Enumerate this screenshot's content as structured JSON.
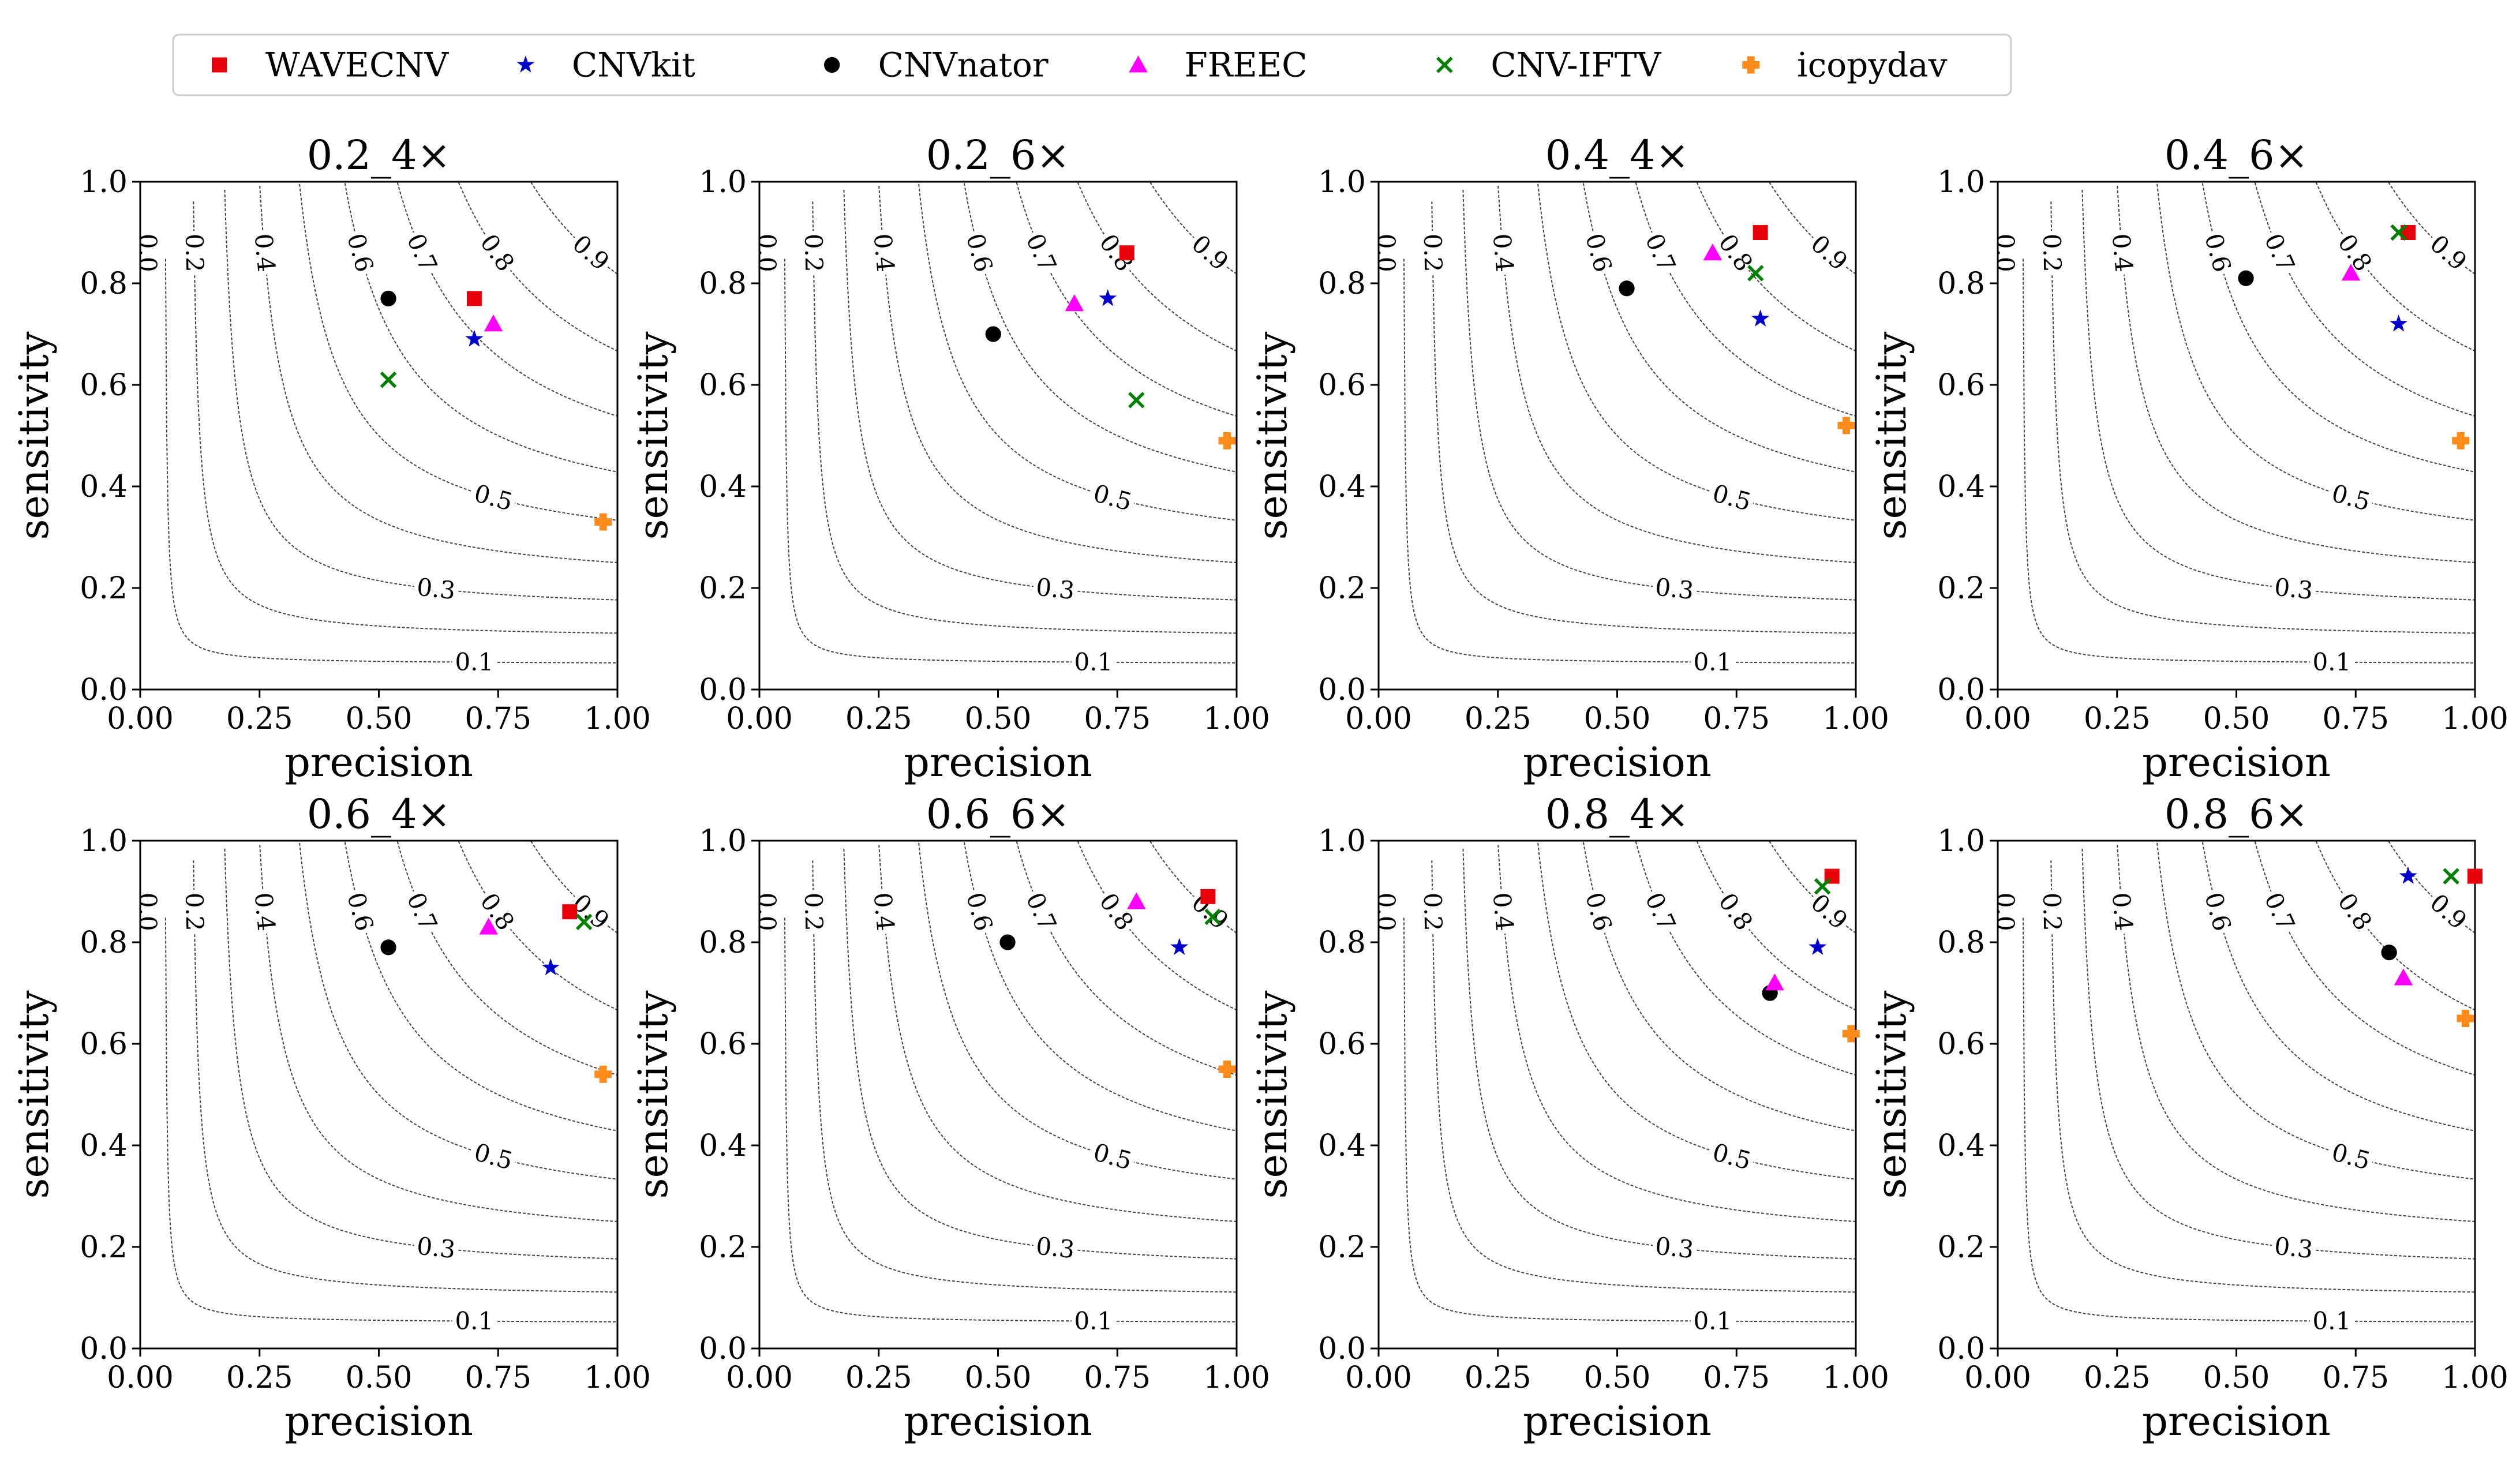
{
  "figure": {
    "legend_position": "top",
    "x_label": "precision",
    "y_label": "sensitivity",
    "x_ticks": [
      "0.00",
      "0.25",
      "0.50",
      "0.75",
      "1.00"
    ],
    "y_ticks": [
      "0.0",
      "0.2",
      "0.4",
      "0.6",
      "0.8",
      "1.0"
    ]
  },
  "series_styles": [
    {
      "name": "WAVECNV",
      "color": "#e8000b",
      "marker": "square"
    },
    {
      "name": "CNVkit",
      "color": "#0000cc",
      "marker": "star"
    },
    {
      "name": "CNVnator",
      "color": "#000000",
      "marker": "circle"
    },
    {
      "name": "FREEC",
      "color": "#ff00ff",
      "marker": "triangle"
    },
    {
      "name": "CNV-IFTV",
      "color": "#008000",
      "marker": "x"
    },
    {
      "name": "icopydav",
      "color": "#ff8c1a",
      "marker": "plus-filled"
    }
  ],
  "chart_data": [
    {
      "type": "scatter",
      "title": "0.2_4×",
      "xlabel": "precision",
      "ylabel": "sensitivity",
      "xlim": [
        0,
        1
      ],
      "ylim": [
        0,
        1
      ],
      "contour_levels": [
        0.0,
        0.1,
        0.2,
        0.3,
        0.4,
        0.5,
        0.6,
        0.7,
        0.8,
        0.9
      ],
      "series": [
        {
          "name": "WAVECNV",
          "points": [
            [
              0.7,
              0.77
            ]
          ]
        },
        {
          "name": "CNVkit",
          "points": [
            [
              0.7,
              0.69
            ]
          ]
        },
        {
          "name": "CNVnator",
          "points": [
            [
              0.52,
              0.77
            ]
          ]
        },
        {
          "name": "FREEC",
          "points": [
            [
              0.74,
              0.72
            ]
          ]
        },
        {
          "name": "CNV-IFTV",
          "points": [
            [
              0.52,
              0.61
            ]
          ]
        },
        {
          "name": "icopydav",
          "points": [
            [
              0.97,
              0.33
            ]
          ]
        }
      ]
    },
    {
      "type": "scatter",
      "title": "0.2_6×",
      "xlabel": "precision",
      "ylabel": "sensitivity",
      "xlim": [
        0,
        1
      ],
      "ylim": [
        0,
        1
      ],
      "contour_levels": [
        0.0,
        0.1,
        0.2,
        0.3,
        0.4,
        0.5,
        0.6,
        0.7,
        0.8,
        0.9
      ],
      "series": [
        {
          "name": "WAVECNV",
          "points": [
            [
              0.77,
              0.86
            ]
          ]
        },
        {
          "name": "CNVkit",
          "points": [
            [
              0.73,
              0.77
            ]
          ]
        },
        {
          "name": "CNVnator",
          "points": [
            [
              0.49,
              0.7
            ]
          ]
        },
        {
          "name": "FREEC",
          "points": [
            [
              0.66,
              0.76
            ]
          ]
        },
        {
          "name": "CNV-IFTV",
          "points": [
            [
              0.79,
              0.57
            ]
          ]
        },
        {
          "name": "icopydav",
          "points": [
            [
              0.98,
              0.49
            ]
          ]
        }
      ]
    },
    {
      "type": "scatter",
      "title": "0.4_4×",
      "xlabel": "precision",
      "ylabel": "sensitivity",
      "xlim": [
        0,
        1
      ],
      "ylim": [
        0,
        1
      ],
      "contour_levels": [
        0.0,
        0.1,
        0.2,
        0.3,
        0.4,
        0.5,
        0.6,
        0.7,
        0.8,
        0.9
      ],
      "series": [
        {
          "name": "WAVECNV",
          "points": [
            [
              0.8,
              0.9
            ]
          ]
        },
        {
          "name": "CNVkit",
          "points": [
            [
              0.8,
              0.73
            ]
          ]
        },
        {
          "name": "CNVnator",
          "points": [
            [
              0.52,
              0.79
            ]
          ]
        },
        {
          "name": "FREEC",
          "points": [
            [
              0.7,
              0.86
            ]
          ]
        },
        {
          "name": "CNV-IFTV",
          "points": [
            [
              0.79,
              0.82
            ]
          ]
        },
        {
          "name": "icopydav",
          "points": [
            [
              0.98,
              0.52
            ]
          ]
        }
      ]
    },
    {
      "type": "scatter",
      "title": "0.4_6×",
      "xlabel": "precision",
      "ylabel": "sensitivity",
      "xlim": [
        0,
        1
      ],
      "ylim": [
        0,
        1
      ],
      "contour_levels": [
        0.0,
        0.1,
        0.2,
        0.3,
        0.4,
        0.5,
        0.6,
        0.7,
        0.8,
        0.9
      ],
      "series": [
        {
          "name": "WAVECNV",
          "points": [
            [
              0.86,
              0.9
            ]
          ]
        },
        {
          "name": "CNVkit",
          "points": [
            [
              0.84,
              0.72
            ]
          ]
        },
        {
          "name": "CNVnator",
          "points": [
            [
              0.52,
              0.81
            ]
          ]
        },
        {
          "name": "FREEC",
          "points": [
            [
              0.74,
              0.82
            ]
          ]
        },
        {
          "name": "CNV-IFTV",
          "points": [
            [
              0.84,
              0.9
            ]
          ]
        },
        {
          "name": "icopydav",
          "points": [
            [
              0.97,
              0.49
            ]
          ]
        }
      ]
    },
    {
      "type": "scatter",
      "title": "0.6_4×",
      "xlabel": "precision",
      "ylabel": "sensitivity",
      "xlim": [
        0,
        1
      ],
      "ylim": [
        0,
        1
      ],
      "contour_levels": [
        0.0,
        0.1,
        0.2,
        0.3,
        0.4,
        0.5,
        0.6,
        0.7,
        0.8,
        0.9
      ],
      "series": [
        {
          "name": "WAVECNV",
          "points": [
            [
              0.9,
              0.86
            ]
          ]
        },
        {
          "name": "CNVkit",
          "points": [
            [
              0.86,
              0.75
            ]
          ]
        },
        {
          "name": "CNVnator",
          "points": [
            [
              0.52,
              0.79
            ]
          ]
        },
        {
          "name": "FREEC",
          "points": [
            [
              0.73,
              0.83
            ]
          ]
        },
        {
          "name": "CNV-IFTV",
          "points": [
            [
              0.93,
              0.84
            ]
          ]
        },
        {
          "name": "icopydav",
          "points": [
            [
              0.97,
              0.54
            ]
          ]
        }
      ]
    },
    {
      "type": "scatter",
      "title": "0.6_6×",
      "xlabel": "precision",
      "ylabel": "sensitivity",
      "xlim": [
        0,
        1
      ],
      "ylim": [
        0,
        1
      ],
      "contour_levels": [
        0.0,
        0.1,
        0.2,
        0.3,
        0.4,
        0.5,
        0.6,
        0.7,
        0.8,
        0.9
      ],
      "series": [
        {
          "name": "WAVECNV",
          "points": [
            [
              0.94,
              0.89
            ]
          ]
        },
        {
          "name": "CNVkit",
          "points": [
            [
              0.88,
              0.79
            ]
          ]
        },
        {
          "name": "CNVnator",
          "points": [
            [
              0.52,
              0.8
            ]
          ]
        },
        {
          "name": "FREEC",
          "points": [
            [
              0.79,
              0.88
            ]
          ]
        },
        {
          "name": "CNV-IFTV",
          "points": [
            [
              0.95,
              0.85
            ]
          ]
        },
        {
          "name": "icopydav",
          "points": [
            [
              0.98,
              0.55
            ]
          ]
        }
      ]
    },
    {
      "type": "scatter",
      "title": "0.8_4×",
      "xlabel": "precision",
      "ylabel": "sensitivity",
      "xlim": [
        0,
        1
      ],
      "ylim": [
        0,
        1
      ],
      "contour_levels": [
        0.0,
        0.1,
        0.2,
        0.3,
        0.4,
        0.5,
        0.6,
        0.7,
        0.8,
        0.9
      ],
      "series": [
        {
          "name": "WAVECNV",
          "points": [
            [
              0.95,
              0.93
            ]
          ]
        },
        {
          "name": "CNVkit",
          "points": [
            [
              0.92,
              0.79
            ]
          ]
        },
        {
          "name": "CNVnator",
          "points": [
            [
              0.82,
              0.7
            ]
          ]
        },
        {
          "name": "FREEC",
          "points": [
            [
              0.83,
              0.72
            ]
          ]
        },
        {
          "name": "CNV-IFTV",
          "points": [
            [
              0.93,
              0.91
            ]
          ]
        },
        {
          "name": "icopydav",
          "points": [
            [
              0.99,
              0.62
            ]
          ]
        }
      ]
    },
    {
      "type": "scatter",
      "title": "0.8_6×",
      "xlabel": "precision",
      "ylabel": "sensitivity",
      "xlim": [
        0,
        1
      ],
      "ylim": [
        0,
        1
      ],
      "contour_levels": [
        0.0,
        0.1,
        0.2,
        0.3,
        0.4,
        0.5,
        0.6,
        0.7,
        0.8,
        0.9
      ],
      "series": [
        {
          "name": "WAVECNV",
          "points": [
            [
              1.0,
              0.93
            ]
          ]
        },
        {
          "name": "CNVkit",
          "points": [
            [
              0.86,
              0.93
            ]
          ]
        },
        {
          "name": "CNVnator",
          "points": [
            [
              0.82,
              0.78
            ]
          ]
        },
        {
          "name": "FREEC",
          "points": [
            [
              0.85,
              0.73
            ]
          ]
        },
        {
          "name": "CNV-IFTV",
          "points": [
            [
              0.95,
              0.93
            ]
          ]
        },
        {
          "name": "icopydav",
          "points": [
            [
              0.98,
              0.65
            ]
          ]
        }
      ]
    }
  ]
}
